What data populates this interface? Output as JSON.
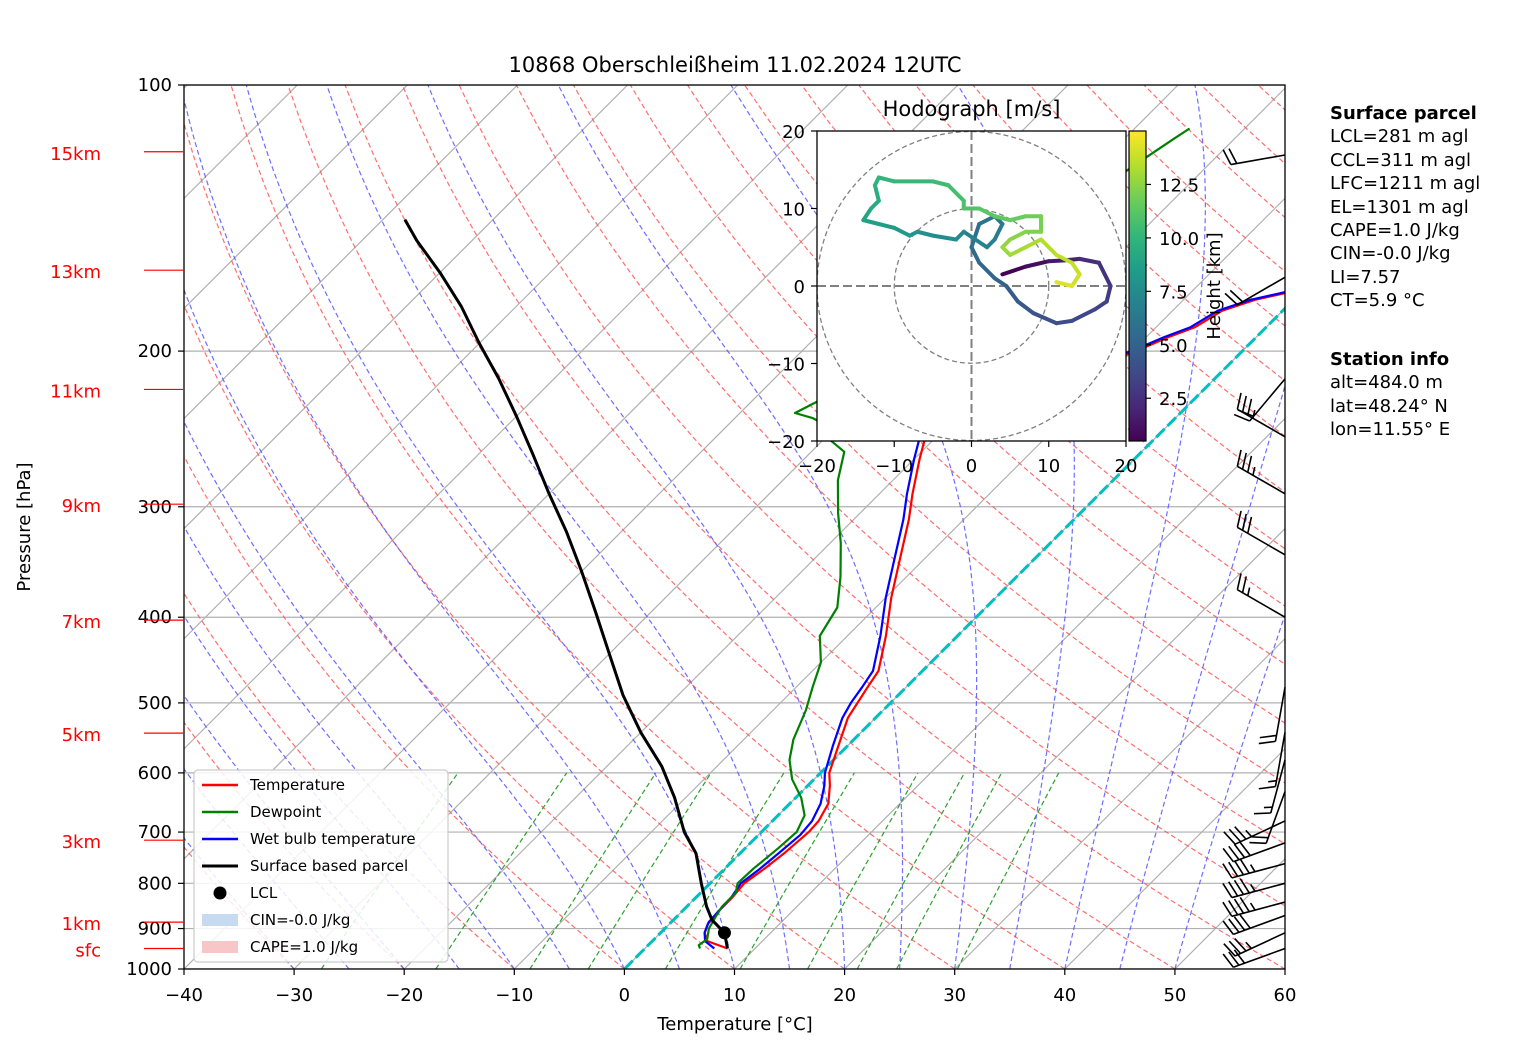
{
  "chart_data": {
    "type": "skew-t log-p",
    "title": "10868 Oberschleißheim 11.02.2024 12UTC",
    "xlabel": "Temperature [°C]",
    "ylabel": "Pressure [hPa]",
    "xlim": [
      -40,
      60
    ],
    "ylim": [
      1000,
      100
    ],
    "x_ticks": [
      "−40",
      "−30",
      "−20",
      "−10",
      "0",
      "10",
      "20",
      "30",
      "40",
      "50",
      "60"
    ],
    "y_ticks": [
      "100",
      "200",
      "300",
      "400",
      "500",
      "600",
      "700",
      "800",
      "900",
      "1000"
    ],
    "y_tick_values": [
      100,
      200,
      300,
      400,
      500,
      600,
      700,
      800,
      900,
      1000
    ],
    "height_labels": [
      {
        "label": "15km",
        "p": 119
      },
      {
        "label": "13km",
        "p": 162
      },
      {
        "label": "11km",
        "p": 221
      },
      {
        "label": "9km",
        "p": 298
      },
      {
        "label": "7km",
        "p": 403
      },
      {
        "label": "5km",
        "p": 541
      },
      {
        "label": "3km",
        "p": 715
      },
      {
        "label": "1km",
        "p": 885
      },
      {
        "label": "sfc",
        "p": 948
      }
    ],
    "grid": true,
    "legend_position": "lower-left",
    "legend": [
      "Temperature",
      "Dewpoint",
      "Wet bulb temperature",
      "Surface based parcel",
      "LCL",
      "CIN=-0.0 J/kg",
      "CAPE=1.0 J/kg"
    ],
    "colors": {
      "temperature": "#ff0000",
      "dewpoint": "#008000",
      "wetbulb": "#0000ff",
      "parcel": "#000000",
      "freezing_isotherm": "#00bfbf",
      "dry_adiabat": "#ff6666",
      "moist_adiabat": "#6666ff",
      "mixing_ratio": "#2ca02c",
      "cin_fill": "#c6dbef",
      "cape_fill": "#f7c6c6"
    },
    "series": [
      {
        "name": "Temperature",
        "points": [
          [
            7.5,
            948
          ],
          [
            5,
            930
          ],
          [
            4,
            910
          ],
          [
            3.5,
            890
          ],
          [
            3.3,
            860
          ],
          [
            3.3,
            830
          ],
          [
            3.1,
            800
          ],
          [
            3.6,
            770
          ],
          [
            4,
            740
          ],
          [
            4.3,
            700
          ],
          [
            4.2,
            680
          ],
          [
            3.5,
            650
          ],
          [
            2,
            620
          ],
          [
            0.8,
            600
          ],
          [
            -0.8,
            560
          ],
          [
            -2.5,
            520
          ],
          [
            -3,
            500
          ],
          [
            -3.5,
            480
          ],
          [
            -4,
            460
          ],
          [
            -6.5,
            420
          ],
          [
            -9.5,
            380
          ],
          [
            -12.5,
            340
          ],
          [
            -15,
            310
          ],
          [
            -17,
            290
          ],
          [
            -19.5,
            265
          ],
          [
            -21,
            250
          ],
          [
            -20.5,
            245
          ],
          [
            -19,
            243
          ],
          [
            -16,
            238
          ],
          [
            -14.5,
            225
          ],
          [
            -12,
            216
          ],
          [
            -11,
            205
          ],
          [
            -9.2,
            198
          ],
          [
            -8,
            193
          ],
          [
            -6.5,
            188
          ],
          [
            -5.5,
            180
          ],
          [
            -3.5,
            175
          ],
          [
            0,
            170
          ],
          [
            1,
            160
          ],
          [
            1.2,
            150
          ],
          [
            2,
            140
          ],
          [
            4,
            130
          ],
          [
            5,
            125
          ],
          [
            6.5,
            118
          ],
          [
            8.5,
            115
          ]
        ]
      },
      {
        "name": "Dewpoint",
        "points": [
          [
            5,
            948
          ],
          [
            4.6,
            940
          ],
          [
            4.8,
            925
          ],
          [
            4,
            900
          ],
          [
            3.5,
            870
          ],
          [
            3.2,
            850
          ],
          [
            3.2,
            820
          ],
          [
            2.5,
            800
          ],
          [
            2.6,
            770
          ],
          [
            3,
            730
          ],
          [
            3.2,
            700
          ],
          [
            2.4,
            670
          ],
          [
            0.5,
            640
          ],
          [
            -2,
            610
          ],
          [
            -4,
            580
          ],
          [
            -5.5,
            550
          ],
          [
            -7,
            510
          ],
          [
            -8.5,
            480
          ],
          [
            -10,
            450
          ],
          [
            -12.5,
            420
          ],
          [
            -13.5,
            390
          ],
          [
            -16,
            360
          ],
          [
            -19,
            330
          ],
          [
            -22,
            305
          ],
          [
            -25,
            280
          ],
          [
            -27,
            260
          ],
          [
            -30,
            250
          ],
          [
            -30,
            245
          ],
          [
            -33,
            238
          ],
          [
            -35,
            235
          ],
          [
            -34,
            228
          ],
          [
            -30,
            222
          ],
          [
            -32,
            218
          ],
          [
            -33,
            210
          ],
          [
            -33.5,
            200
          ],
          [
            -33,
            188
          ],
          [
            -32.5,
            178
          ],
          [
            -31.5,
            168
          ],
          [
            -30.5,
            160
          ],
          [
            -29.5,
            150
          ],
          [
            -28.5,
            140
          ],
          [
            -27.5,
            130
          ],
          [
            -26.5,
            122
          ],
          [
            -25.5,
            115
          ],
          [
            -25,
            112
          ]
        ]
      },
      {
        "name": "Wet bulb temperature",
        "points": [
          [
            6.3,
            948
          ],
          [
            4.8,
            930
          ],
          [
            4,
            910
          ],
          [
            3.4,
            885
          ],
          [
            3.3,
            860
          ],
          [
            3.2,
            830
          ],
          [
            2.8,
            800
          ],
          [
            3.2,
            770
          ],
          [
            3.5,
            740
          ],
          [
            3.8,
            705
          ],
          [
            3.6,
            680
          ],
          [
            2.8,
            650
          ],
          [
            1.5,
            620
          ],
          [
            0.4,
            600
          ],
          [
            -1.3,
            560
          ],
          [
            -3,
            520
          ],
          [
            -3.6,
            500
          ],
          [
            -4,
            480
          ],
          [
            -4.5,
            460
          ],
          [
            -7,
            420
          ],
          [
            -10,
            380
          ],
          [
            -13,
            340
          ],
          [
            -15.5,
            310
          ],
          [
            -17.5,
            290
          ],
          [
            -20,
            265
          ],
          [
            -21.5,
            250
          ],
          [
            -21,
            245
          ],
          [
            -19.5,
            243
          ],
          [
            -16.5,
            238
          ],
          [
            -15,
            225
          ],
          [
            -12.5,
            216
          ],
          [
            -11.5,
            205
          ],
          [
            -9.6,
            198
          ],
          [
            -8.4,
            193
          ],
          [
            -6.9,
            188
          ],
          [
            -5.9,
            180
          ],
          [
            -3.9,
            175
          ],
          [
            -0.4,
            170
          ],
          [
            0.6,
            160
          ],
          [
            0.8,
            150
          ],
          [
            1.6,
            140
          ],
          [
            3.6,
            130
          ],
          [
            4.6,
            125
          ],
          [
            6.1,
            118
          ],
          [
            8.1,
            115
          ]
        ]
      },
      {
        "name": "Surface based parcel",
        "points": [
          [
            7.5,
            948
          ],
          [
            5.8,
            910
          ],
          [
            3.5,
            880
          ],
          [
            1.8,
            850
          ],
          [
            -0.8,
            800
          ],
          [
            -4,
            740
          ],
          [
            -7,
            700
          ],
          [
            -11,
            640
          ],
          [
            -15,
            590
          ],
          [
            -20,
            540
          ],
          [
            -25,
            490
          ],
          [
            -30,
            440
          ],
          [
            -35,
            395
          ],
          [
            -40,
            355
          ],
          [
            -45,
            320
          ],
          [
            -50,
            290
          ],
          [
            -55,
            262
          ],
          [
            -60,
            237
          ],
          [
            -65,
            215
          ],
          [
            -70,
            196
          ],
          [
            -75,
            178
          ],
          [
            -80,
            163
          ],
          [
            -85,
            150
          ],
          [
            -88,
            142
          ]
        ]
      }
    ],
    "lcl": {
      "t": 5.8,
      "p": 910
    },
    "hodograph": {
      "title": "Hodograph [m/s]",
      "xlim": [
        -20,
        20
      ],
      "ylim": [
        -20,
        20
      ],
      "ticks": [
        "−20",
        "−10",
        "0",
        "10",
        "20"
      ],
      "rings": [
        10,
        20
      ],
      "colorbar_label": "Height [km]",
      "colorbar_ticks": [
        "2.5",
        "5.0",
        "7.5",
        "10.0",
        "12.5"
      ],
      "colorbar_range": [
        0.5,
        15
      ],
      "points": [
        [
          4,
          1.5,
          0.6
        ],
        [
          7,
          2.5,
          1.0
        ],
        [
          10,
          3.2,
          1.5
        ],
        [
          12,
          3.3,
          1.9
        ],
        [
          14,
          3.5,
          2.3
        ],
        [
          16.5,
          3.0,
          2.6
        ],
        [
          18,
          0,
          3.0
        ],
        [
          17.5,
          -2,
          3.3
        ],
        [
          16,
          -3,
          3.6
        ],
        [
          13,
          -4.5,
          3.9
        ],
        [
          11,
          -4.8,
          4.1
        ],
        [
          8,
          -3.5,
          4.4
        ],
        [
          6,
          -2,
          4.7
        ],
        [
          4.5,
          0,
          5.0
        ],
        [
          3,
          1,
          5.2
        ],
        [
          1,
          3,
          5.5
        ],
        [
          0,
          5,
          5.8
        ],
        [
          1,
          8,
          6.1
        ],
        [
          3,
          9,
          6.3
        ],
        [
          4,
          8,
          6.5
        ],
        [
          3,
          6,
          6.8
        ],
        [
          2,
          5,
          7.0
        ],
        [
          -1,
          7,
          7.3
        ],
        [
          -2,
          6,
          7.5
        ],
        [
          -5,
          6.5,
          7.8
        ],
        [
          -7,
          7,
          8.0
        ],
        [
          -8,
          6.5,
          8.2
        ],
        [
          -10,
          7.5,
          8.5
        ],
        [
          -12,
          8,
          8.7
        ],
        [
          -14,
          8.5,
          9.0
        ],
        [
          -13,
          10,
          9.3
        ],
        [
          -12,
          11,
          9.5
        ],
        [
          -12.5,
          13,
          9.8
        ],
        [
          -12,
          14,
          10.0
        ],
        [
          -10,
          13.5,
          10.2
        ],
        [
          -5,
          13.5,
          10.4
        ],
        [
          -3,
          13,
          10.6
        ],
        [
          -1,
          11,
          10.8
        ],
        [
          -1,
          10,
          11.0
        ],
        [
          1,
          10,
          11.2
        ],
        [
          3,
          9,
          11.4
        ],
        [
          5,
          8.5,
          11.6
        ],
        [
          7,
          9,
          11.8
        ],
        [
          9,
          9,
          12.0
        ],
        [
          9,
          7,
          12.2
        ],
        [
          7,
          7,
          12.4
        ],
        [
          5,
          6,
          12.6
        ],
        [
          4,
          5,
          12.8
        ],
        [
          5,
          4,
          13.0
        ],
        [
          7,
          5,
          13.2
        ],
        [
          9,
          6,
          13.4
        ],
        [
          11,
          4,
          13.6
        ],
        [
          13,
          3,
          13.8
        ],
        [
          14,
          1.5,
          14.0
        ],
        [
          13,
          0,
          14.3
        ],
        [
          11,
          0.5,
          14.6
        ]
      ]
    },
    "wind_barbs": [
      {
        "p": 948,
        "speed_kt": 30,
        "dir": 250
      },
      {
        "p": 910,
        "speed_kt": 35,
        "dir": 245
      },
      {
        "p": 870,
        "speed_kt": 40,
        "dir": 250
      },
      {
        "p": 840,
        "speed_kt": 45,
        "dir": 255
      },
      {
        "p": 800,
        "speed_kt": 45,
        "dir": 255
      },
      {
        "p": 760,
        "speed_kt": 45,
        "dir": 255
      },
      {
        "p": 720,
        "speed_kt": 40,
        "dir": 250
      },
      {
        "p": 680,
        "speed_kt": 35,
        "dir": 245
      },
      {
        "p": 630,
        "speed_kt": 20,
        "dir": 200
      },
      {
        "p": 580,
        "speed_kt": 15,
        "dir": 195
      },
      {
        "p": 540,
        "speed_kt": 15,
        "dir": 190
      },
      {
        "p": 480,
        "speed_kt": 20,
        "dir": 190
      },
      {
        "p": 400,
        "speed_kt": 25,
        "dir": 300
      },
      {
        "p": 340,
        "speed_kt": 30,
        "dir": 300
      },
      {
        "p": 290,
        "speed_kt": 35,
        "dir": 300
      },
      {
        "p": 250,
        "speed_kt": 35,
        "dir": 300
      },
      {
        "p": 215,
        "speed_kt": 20,
        "dir": 220
      },
      {
        "p": 165,
        "speed_kt": 20,
        "dir": 240
      },
      {
        "p": 120,
        "speed_kt": 20,
        "dir": 260
      }
    ]
  },
  "info": {
    "surface_heading": "Surface parcel",
    "lines": [
      "LCL=281 m agl",
      "CCL=311 m agl",
      "LFC=1211 m agl",
      "EL=1301 m agl",
      "CAPE=1.0 J/kg",
      "CIN=-0.0 J/kg",
      "LI=7.57",
      "CT=5.9 °C"
    ],
    "station_heading": "Station info",
    "station_lines": [
      "alt=484.0 m",
      "lat=48.24° N",
      "lon=11.55° E"
    ]
  }
}
